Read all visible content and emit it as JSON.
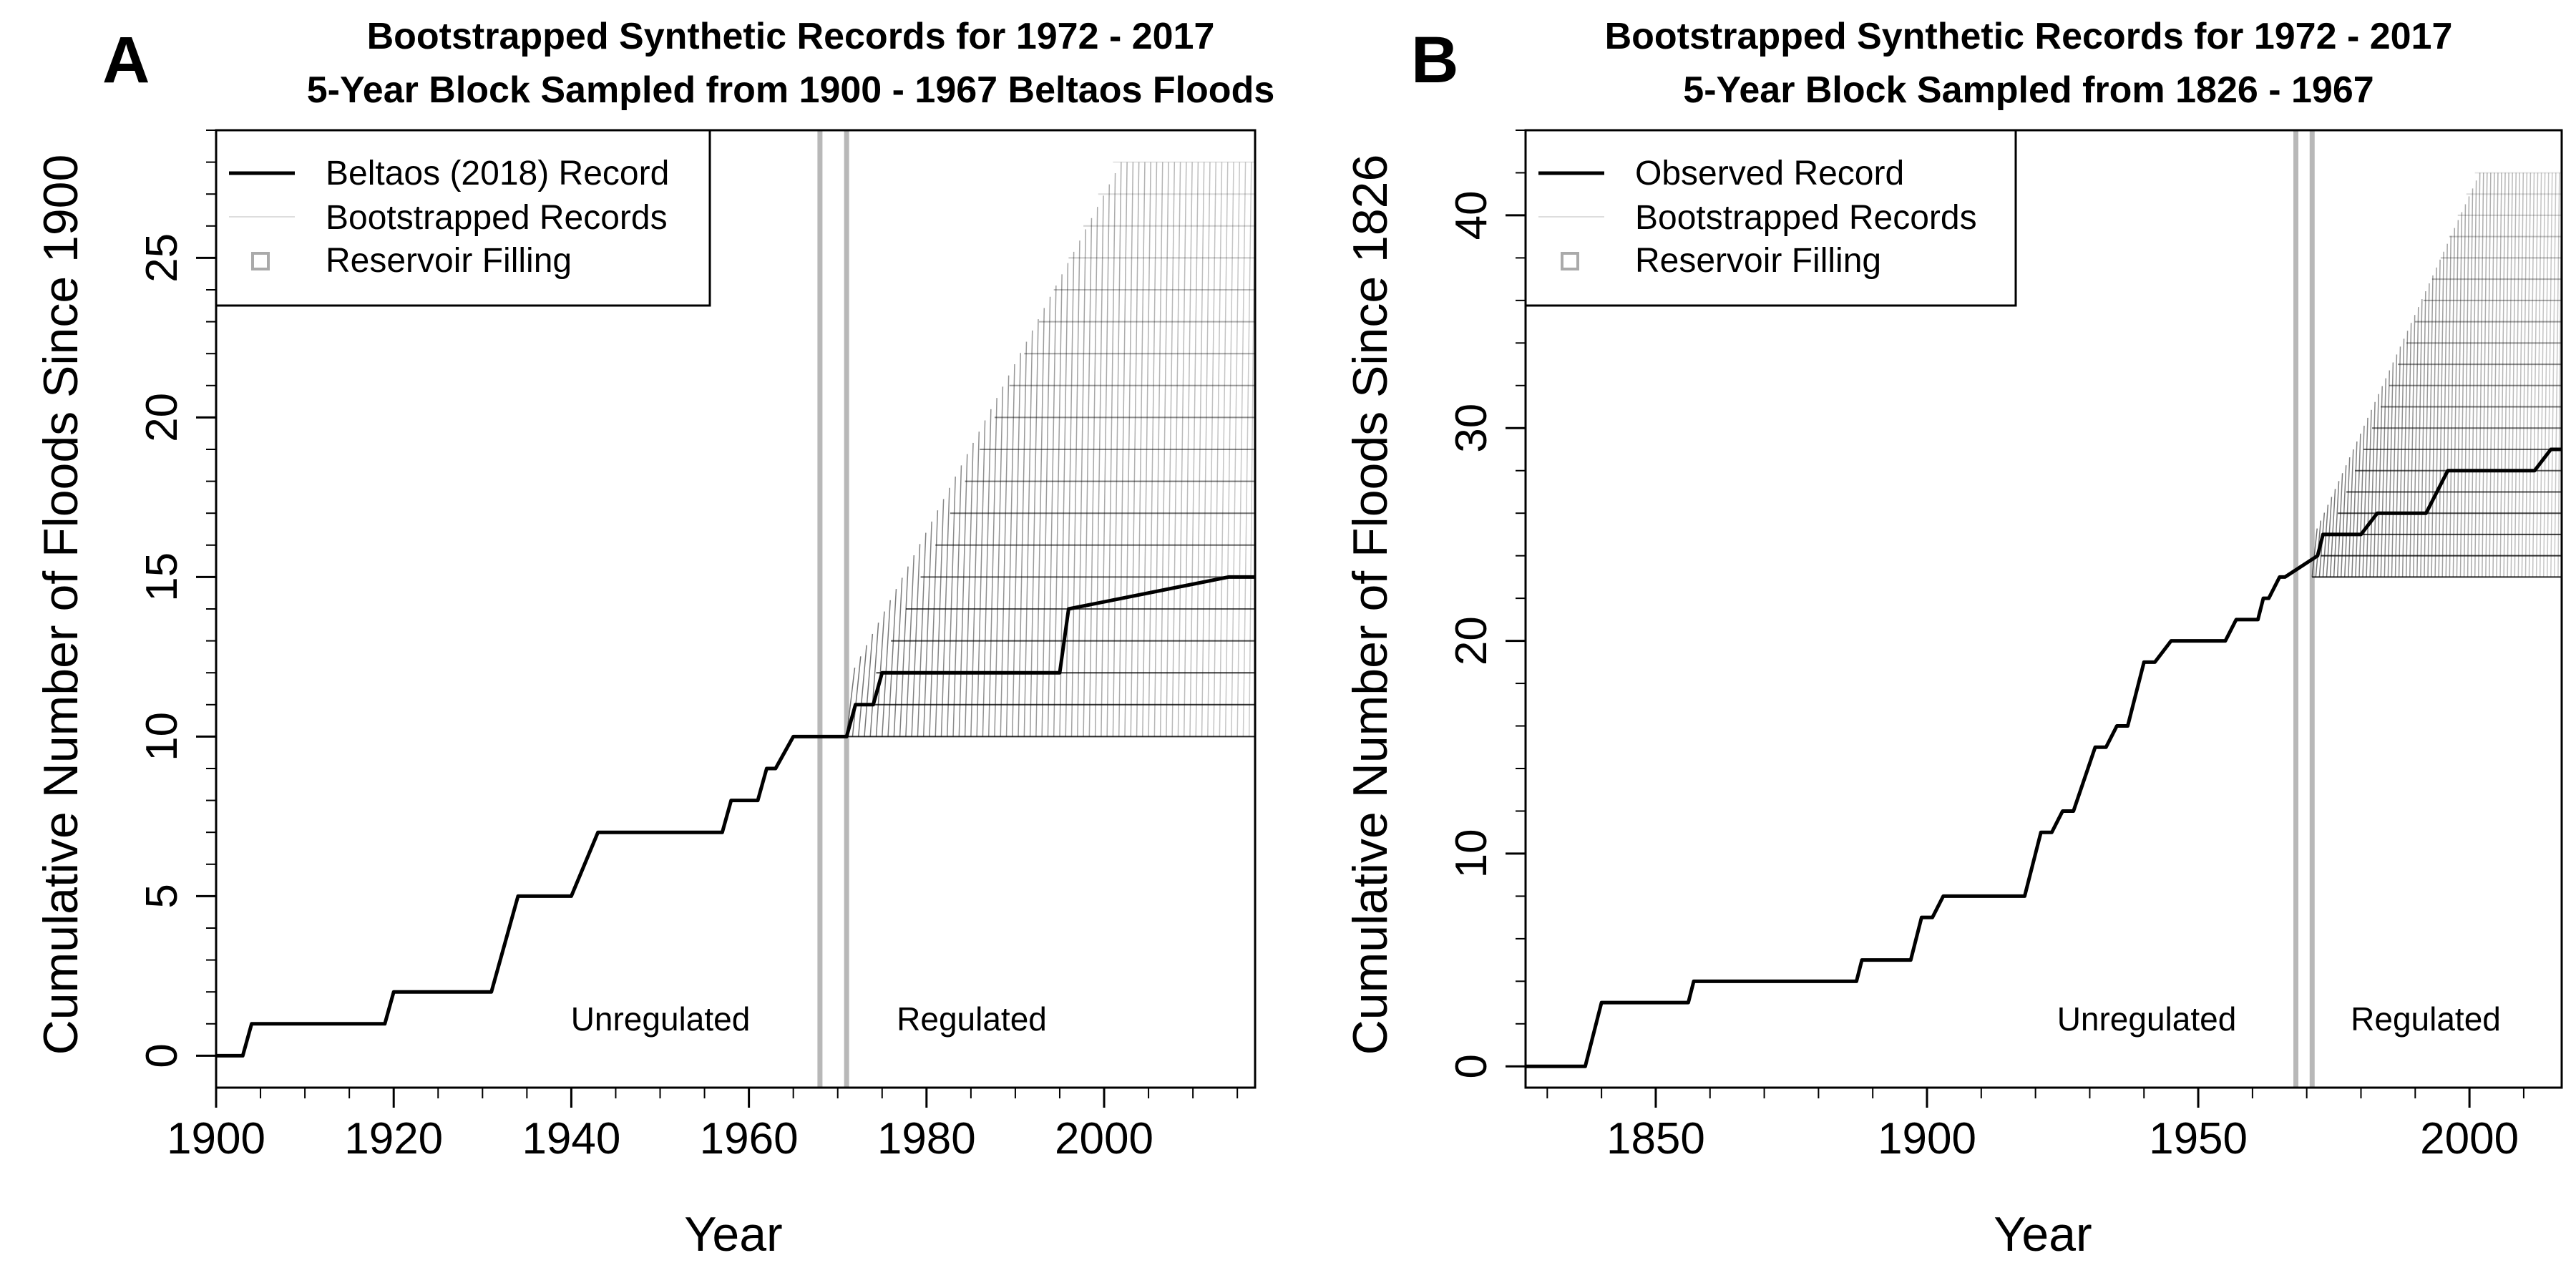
{
  "chart_data": [
    {
      "type": "line",
      "panel_label": "A",
      "title_line1": "Bootstrapped Synthetic Records for 1972 - 2017",
      "title_line2": "5-Year Block Sampled from 1900 - 1967 Beltaos Floods",
      "xlabel": "Year",
      "ylabel": "Cumulative Number of Floods Since 1900",
      "xlim": [
        1900,
        2017
      ],
      "ylim": [
        -1,
        29
      ],
      "xticks": [
        1900,
        1920,
        1940,
        1960,
        1980,
        2000
      ],
      "yticks": [
        0,
        5,
        10,
        15,
        20,
        25
      ],
      "grid": false,
      "legend_placement": "top-left",
      "legend": [
        "Beltaos (2018) Record",
        "Bootstrapped Records",
        "Reservoir Filling"
      ],
      "reservoir_filling": [
        1968,
        1971
      ],
      "region_labels": {
        "unregulated": "Unregulated",
        "regulated": "Regulated"
      },
      "bootstrap": {
        "start_year": 1971,
        "end_year": 2017,
        "base_value": 10,
        "max_value": 28
      },
      "series": [
        {
          "name": "Beltaos (2018) Record",
          "x": [
            1900,
            1903,
            1904,
            1919,
            1920,
            1931,
            1934,
            1940,
            1943,
            1957,
            1958,
            1961,
            1962,
            1963,
            1965,
            1971,
            1972,
            1974,
            1975,
            1995,
            1996,
            2014,
            2017
          ],
          "y": [
            0,
            0,
            1,
            1,
            2,
            2,
            5,
            5,
            7,
            7,
            8,
            8,
            9,
            9,
            10,
            10,
            11,
            11,
            12,
            12,
            14,
            15,
            15
          ]
        }
      ]
    },
    {
      "type": "line",
      "panel_label": "B",
      "title_line1": "Bootstrapped Synthetic Records for 1972 - 2017",
      "title_line2": "5-Year Block Sampled from 1826 - 1967",
      "xlabel": "Year",
      "ylabel": "Cumulative Number of Floods Since 1826",
      "xlim": [
        1826,
        2017
      ],
      "ylim": [
        -1,
        44
      ],
      "xticks": [
        1850,
        1900,
        1950,
        2000
      ],
      "yticks": [
        0,
        10,
        20,
        30,
        40
      ],
      "grid": false,
      "legend_placement": "top-left",
      "legend": [
        "Observed Record",
        "Bootstrapped Records",
        "Reservoir Filling"
      ],
      "reservoir_filling": [
        1968,
        1971
      ],
      "region_labels": {
        "unregulated": "Unregulated",
        "regulated": "Regulated"
      },
      "bootstrap": {
        "start_year": 1971,
        "end_year": 2017,
        "base_value": 23,
        "max_value": 42
      },
      "series": [
        {
          "name": "Observed Record",
          "x": [
            1826,
            1837,
            1840,
            1856,
            1857,
            1887,
            1888,
            1897,
            1899,
            1901,
            1903,
            1918,
            1920,
            1921,
            1923,
            1925,
            1927,
            1931,
            1933,
            1935,
            1937,
            1940,
            1942,
            1945,
            1947,
            1955,
            1957,
            1961,
            1962,
            1963,
            1965,
            1966,
            1972,
            1973,
            1974,
            1980,
            1983,
            1992,
            1996,
            2004,
            2012,
            2015,
            2017
          ],
          "y": [
            0,
            0,
            3,
            3,
            4,
            4,
            5,
            5,
            7,
            7,
            8,
            8,
            10,
            11,
            11,
            12,
            12,
            15,
            15,
            16,
            16,
            19,
            19,
            20,
            20,
            20,
            21,
            21,
            22,
            22,
            23,
            23,
            24,
            25,
            25,
            25,
            26,
            26,
            28,
            28,
            28,
            29,
            29
          ]
        }
      ]
    }
  ]
}
